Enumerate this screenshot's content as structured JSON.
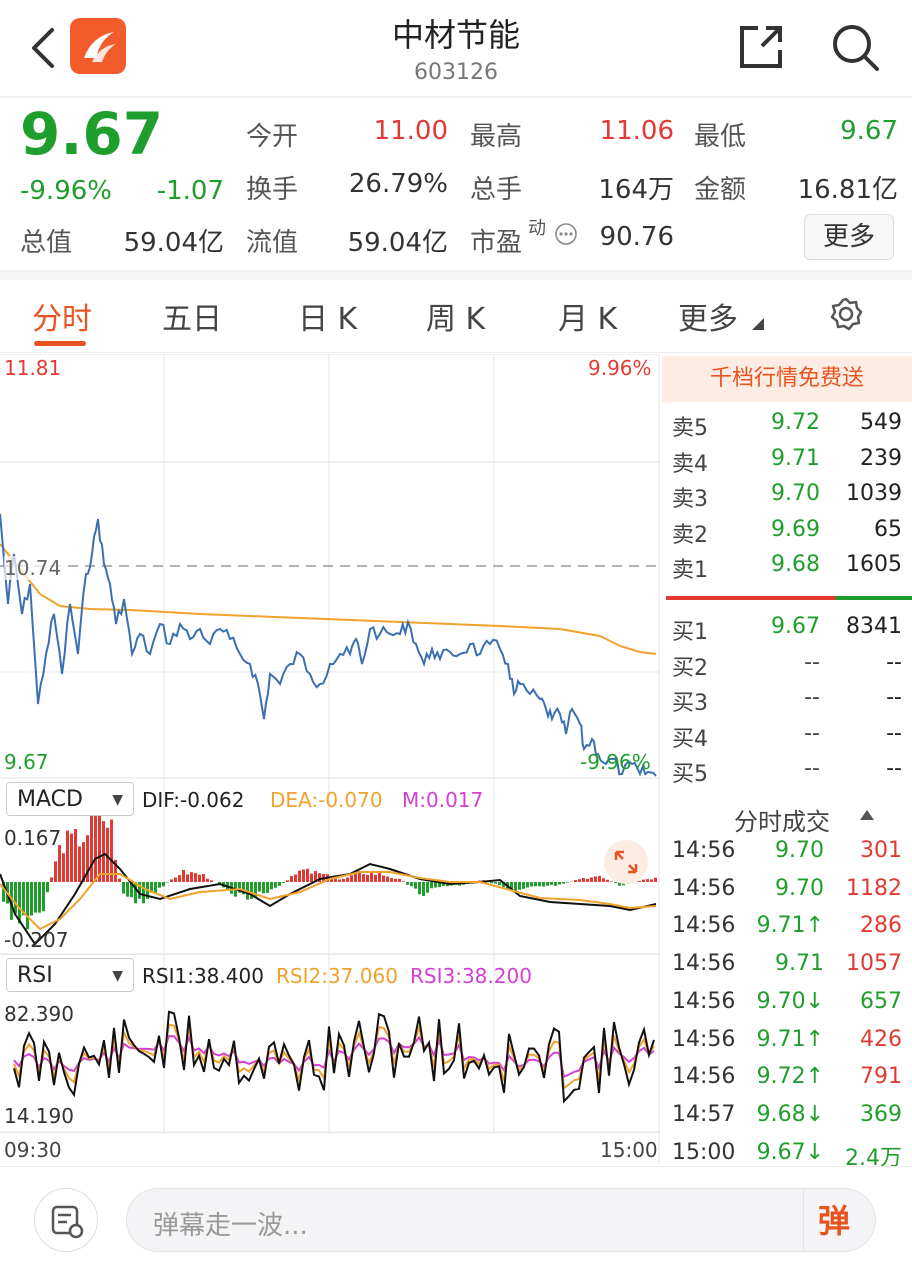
{
  "header": {
    "title": "中材节能",
    "code": "603126",
    "icons": [
      "back-icon",
      "app-logo-icon",
      "share-icon",
      "search-icon"
    ]
  },
  "quote": {
    "price": "9.67",
    "change_pct": "-9.96%",
    "change": "-1.07",
    "fields": [
      {
        "label": "今开",
        "value": "11.00"
      },
      {
        "label": "最高",
        "value": "11.06"
      },
      {
        "label": "最低",
        "value": "9.67"
      },
      {
        "label": "换手",
        "value": "26.79%"
      },
      {
        "label": "总手",
        "value": "164万"
      },
      {
        "label": "金额",
        "value": "16.81亿"
      },
      {
        "label": "总值",
        "value": "59.04亿"
      },
      {
        "label": "流值",
        "value": "59.04亿"
      },
      {
        "label": "市盈",
        "value": "90.76"
      }
    ],
    "pe_superscript": "动",
    "more_label": "更多"
  },
  "tabs": {
    "items": [
      "分时",
      "五日",
      "日 K",
      "周 K",
      "月 K",
      "更多"
    ],
    "active": "分时"
  },
  "intraday": {
    "high_price": "11.81",
    "high_pct": "9.96%",
    "ref_price": "10.74",
    "low_price": "9.67",
    "low_pct": "-9.96%",
    "time_start": "09:30",
    "time_end": "15:00"
  },
  "macd": {
    "name": "MACD",
    "dif": "DIF:-0.062",
    "dea": "DEA:-0.070",
    "m": "M:0.017",
    "top": "0.167",
    "bottom": "-0.207"
  },
  "rsi": {
    "name": "RSI",
    "rsi1": "RSI1:38.400",
    "rsi2": "RSI2:37.060",
    "rsi3": "RSI3:38.200",
    "top": "82.390",
    "bottom": "14.190"
  },
  "order_book": {
    "promo": "千档行情免费送",
    "asks": [
      {
        "label": "卖5",
        "price": "9.72",
        "vol": "549"
      },
      {
        "label": "卖4",
        "price": "9.71",
        "vol": "239"
      },
      {
        "label": "卖3",
        "price": "9.70",
        "vol": "1039"
      },
      {
        "label": "卖2",
        "price": "9.69",
        "vol": "65"
      },
      {
        "label": "卖1",
        "price": "9.68",
        "vol": "1605"
      }
    ],
    "bids": [
      {
        "label": "买1",
        "price": "9.67",
        "vol": "8341"
      },
      {
        "label": "买2",
        "price": "--",
        "vol": "--"
      },
      {
        "label": "买3",
        "price": "--",
        "vol": "--"
      },
      {
        "label": "买4",
        "price": "--",
        "vol": "--"
      },
      {
        "label": "买5",
        "price": "--",
        "vol": "--"
      }
    ]
  },
  "trades": {
    "title": "分时成交",
    "rows": [
      {
        "time": "14:56",
        "price": "9.70",
        "vol": "301"
      },
      {
        "time": "14:56",
        "price": "9.70",
        "vol": "1182"
      },
      {
        "time": "14:56",
        "price": "9.71↑",
        "vol": "286"
      },
      {
        "time": "14:56",
        "price": "9.71",
        "vol": "1057"
      },
      {
        "time": "14:56",
        "price": "9.70↓",
        "vol": "657"
      },
      {
        "time": "14:56",
        "price": "9.71↑",
        "vol": "426"
      },
      {
        "time": "14:56",
        "price": "9.72↑",
        "vol": "791"
      },
      {
        "time": "14:57",
        "price": "9.68↓",
        "vol": "369"
      },
      {
        "time": "15:00",
        "price": "9.67↓",
        "vol": "2.4万"
      }
    ]
  },
  "bottom": {
    "placeholder": "弹幕走一波...",
    "danmu_button": "弹"
  },
  "colors": {
    "up": "#e23a33",
    "down": "#1f9e2e",
    "accent": "#e8541f",
    "price_line": "#3a6fb0",
    "avg_line": "#f0a22c",
    "dea": "#f0a22c",
    "m": "#d43fd4"
  }
}
